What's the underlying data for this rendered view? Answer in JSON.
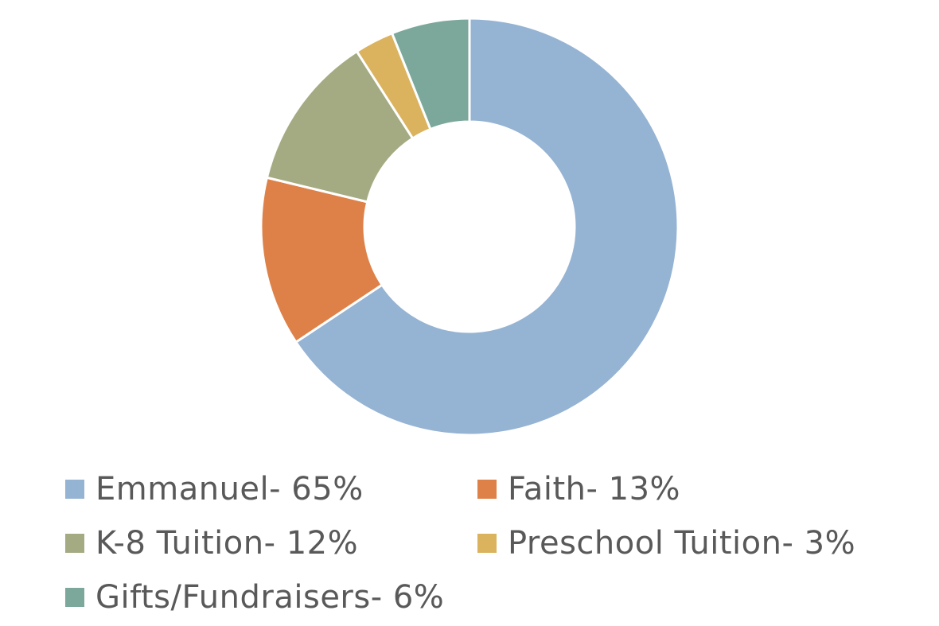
{
  "chart_data": {
    "type": "pie",
    "variant": "donut",
    "title": "",
    "slices": [
      {
        "label": "Emmanuel- 65%",
        "value": 65,
        "color": "#95B3D3"
      },
      {
        "label": "Faith- 13%",
        "value": 13,
        "color": "#DE8148"
      },
      {
        "label": "K-8 Tuition- 12%",
        "value": 12,
        "color": "#A4AB82"
      },
      {
        "label": "Preschool Tuition- 3%",
        "value": 3,
        "color": "#DBB35F"
      },
      {
        "label": "Gifts/Fundraisers- 6%",
        "value": 6,
        "color": "#7BA89B"
      }
    ],
    "start_angle": "12 o'clock",
    "direction": "clockwise",
    "legend": {
      "position": "bottom",
      "columns": 2
    }
  }
}
